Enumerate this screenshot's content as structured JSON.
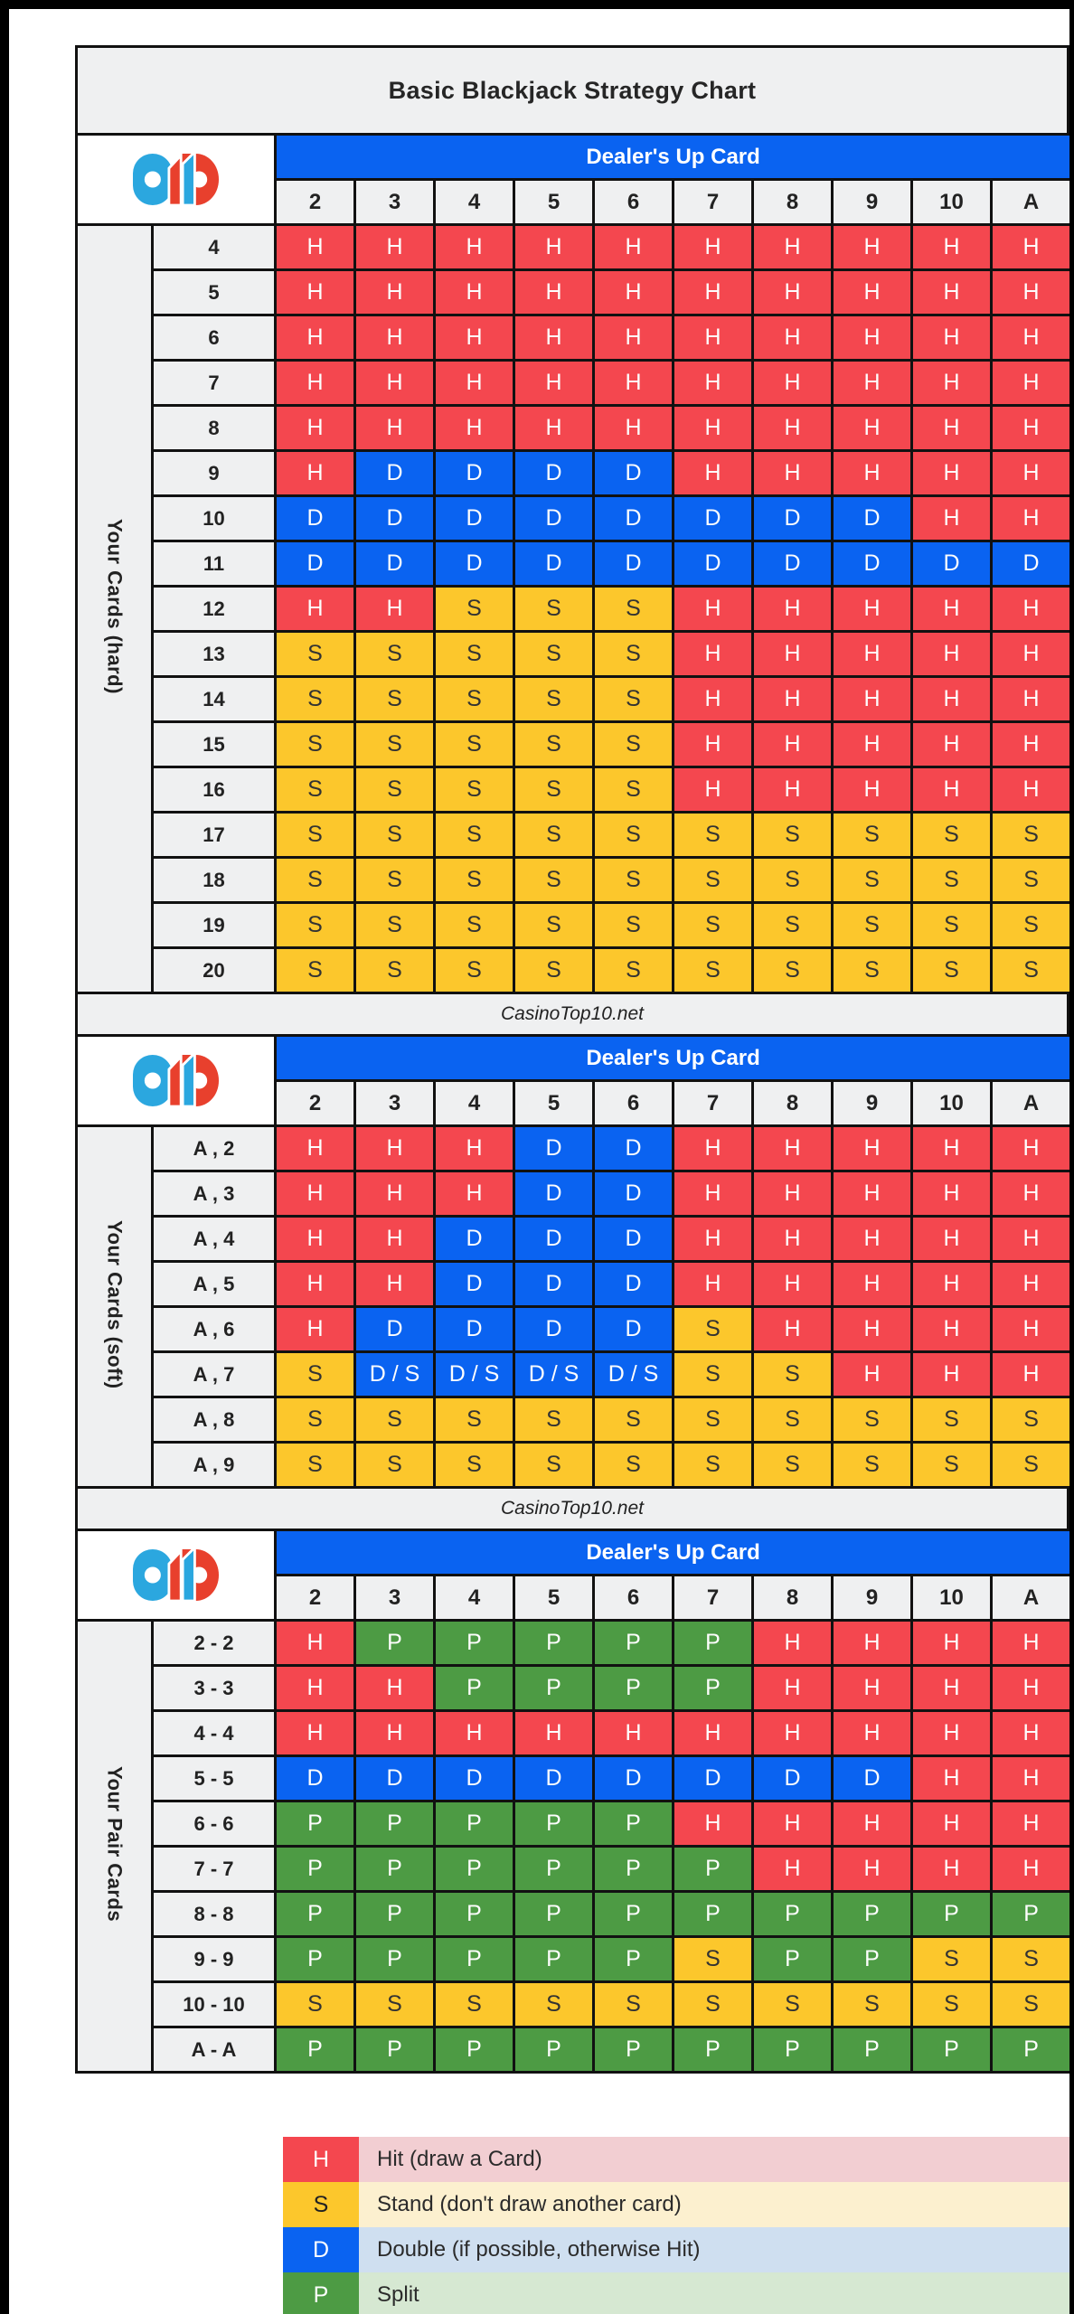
{
  "title": "Basic Blackjack Strategy Chart",
  "watermark": "CasinoTop10.net",
  "dealer": {
    "header": "Dealer's Up Card",
    "cards": [
      "2",
      "3",
      "4",
      "5",
      "6",
      "7",
      "8",
      "9",
      "10",
      "A"
    ]
  },
  "logo": {
    "name": "CasinoTop10 logo",
    "blue": "#2ba7df",
    "red": "#e8402d"
  },
  "colors": {
    "hit": "#f4474f",
    "stand": "#fcc72c",
    "double": "#0a63f1",
    "split": "#4d9b44",
    "border": "#111111",
    "band_bg": "#eff0f1",
    "legend_hit_bg": "#f2ced2",
    "legend_stand_bg": "#fcf0cf",
    "legend_double_bg": "#cfdff0",
    "legend_split_bg": "#d6e8d2"
  },
  "chart_data": [
    {
      "type": "table",
      "id": "hard",
      "title": "Your Cards (hard)",
      "columns": [
        "2",
        "3",
        "4",
        "5",
        "6",
        "7",
        "8",
        "9",
        "10",
        "A"
      ],
      "row_labels": [
        "4",
        "5",
        "6",
        "7",
        "8",
        "9",
        "10",
        "11",
        "12",
        "13",
        "14",
        "15",
        "16",
        "17",
        "18",
        "19",
        "20"
      ],
      "rows": [
        [
          "H",
          "H",
          "H",
          "H",
          "H",
          "H",
          "H",
          "H",
          "H",
          "H"
        ],
        [
          "H",
          "H",
          "H",
          "H",
          "H",
          "H",
          "H",
          "H",
          "H",
          "H"
        ],
        [
          "H",
          "H",
          "H",
          "H",
          "H",
          "H",
          "H",
          "H",
          "H",
          "H"
        ],
        [
          "H",
          "H",
          "H",
          "H",
          "H",
          "H",
          "H",
          "H",
          "H",
          "H"
        ],
        [
          "H",
          "H",
          "H",
          "H",
          "H",
          "H",
          "H",
          "H",
          "H",
          "H"
        ],
        [
          "H",
          "D",
          "D",
          "D",
          "D",
          "H",
          "H",
          "H",
          "H",
          "H"
        ],
        [
          "D",
          "D",
          "D",
          "D",
          "D",
          "D",
          "D",
          "D",
          "H",
          "H"
        ],
        [
          "D",
          "D",
          "D",
          "D",
          "D",
          "D",
          "D",
          "D",
          "D",
          "D"
        ],
        [
          "H",
          "H",
          "S",
          "S",
          "S",
          "H",
          "H",
          "H",
          "H",
          "H"
        ],
        [
          "S",
          "S",
          "S",
          "S",
          "S",
          "H",
          "H",
          "H",
          "H",
          "H"
        ],
        [
          "S",
          "S",
          "S",
          "S",
          "S",
          "H",
          "H",
          "H",
          "H",
          "H"
        ],
        [
          "S",
          "S",
          "S",
          "S",
          "S",
          "H",
          "H",
          "H",
          "H",
          "H"
        ],
        [
          "S",
          "S",
          "S",
          "S",
          "S",
          "H",
          "H",
          "H",
          "H",
          "H"
        ],
        [
          "S",
          "S",
          "S",
          "S",
          "S",
          "S",
          "S",
          "S",
          "S",
          "S"
        ],
        [
          "S",
          "S",
          "S",
          "S",
          "S",
          "S",
          "S",
          "S",
          "S",
          "S"
        ],
        [
          "S",
          "S",
          "S",
          "S",
          "S",
          "S",
          "S",
          "S",
          "S",
          "S"
        ],
        [
          "S",
          "S",
          "S",
          "S",
          "S",
          "S",
          "S",
          "S",
          "S",
          "S"
        ]
      ]
    },
    {
      "type": "table",
      "id": "soft",
      "title": "Your Cards (soft)",
      "columns": [
        "2",
        "3",
        "4",
        "5",
        "6",
        "7",
        "8",
        "9",
        "10",
        "A"
      ],
      "row_labels": [
        "A , 2",
        "A , 3",
        "A , 4",
        "A , 5",
        "A , 6",
        "A , 7",
        "A , 8",
        "A , 9"
      ],
      "rows": [
        [
          "H",
          "H",
          "H",
          "D",
          "D",
          "H",
          "H",
          "H",
          "H",
          "H"
        ],
        [
          "H",
          "H",
          "H",
          "D",
          "D",
          "H",
          "H",
          "H",
          "H",
          "H"
        ],
        [
          "H",
          "H",
          "D",
          "D",
          "D",
          "H",
          "H",
          "H",
          "H",
          "H"
        ],
        [
          "H",
          "H",
          "D",
          "D",
          "D",
          "H",
          "H",
          "H",
          "H",
          "H"
        ],
        [
          "H",
          "D",
          "D",
          "D",
          "D",
          "S",
          "H",
          "H",
          "H",
          "H"
        ],
        [
          "S",
          "D/S",
          "D/S",
          "D/S",
          "D/S",
          "S",
          "S",
          "H",
          "H",
          "H"
        ],
        [
          "S",
          "S",
          "S",
          "S",
          "S",
          "S",
          "S",
          "S",
          "S",
          "S"
        ],
        [
          "S",
          "S",
          "S",
          "S",
          "S",
          "S",
          "S",
          "S",
          "S",
          "S"
        ]
      ]
    },
    {
      "type": "table",
      "id": "pairs",
      "title": "Your Pair Cards",
      "columns": [
        "2",
        "3",
        "4",
        "5",
        "6",
        "7",
        "8",
        "9",
        "10",
        "A"
      ],
      "row_labels": [
        "2 - 2",
        "3 - 3",
        "4 - 4",
        "5 - 5",
        "6 - 6",
        "7 - 7",
        "8 - 8",
        "9 - 9",
        "10 - 10",
        "A - A"
      ],
      "rows": [
        [
          "H",
          "P",
          "P",
          "P",
          "P",
          "P",
          "H",
          "H",
          "H",
          "H"
        ],
        [
          "H",
          "H",
          "P",
          "P",
          "P",
          "P",
          "H",
          "H",
          "H",
          "H"
        ],
        [
          "H",
          "H",
          "H",
          "H",
          "H",
          "H",
          "H",
          "H",
          "H",
          "H"
        ],
        [
          "D",
          "D",
          "D",
          "D",
          "D",
          "D",
          "D",
          "D",
          "H",
          "H"
        ],
        [
          "P",
          "P",
          "P",
          "P",
          "P",
          "H",
          "H",
          "H",
          "H",
          "H"
        ],
        [
          "P",
          "P",
          "P",
          "P",
          "P",
          "P",
          "H",
          "H",
          "H",
          "H"
        ],
        [
          "P",
          "P",
          "P",
          "P",
          "P",
          "P",
          "P",
          "P",
          "P",
          "P"
        ],
        [
          "P",
          "P",
          "P",
          "P",
          "P",
          "S",
          "P",
          "P",
          "S",
          "S"
        ],
        [
          "S",
          "S",
          "S",
          "S",
          "S",
          "S",
          "S",
          "S",
          "S",
          "S"
        ],
        [
          "P",
          "P",
          "P",
          "P",
          "P",
          "P",
          "P",
          "P",
          "P",
          "P"
        ]
      ]
    }
  ],
  "legend": [
    {
      "key": "H",
      "action": "hit",
      "label": "Hit (draw a Card)"
    },
    {
      "key": "S",
      "action": "stand",
      "label": "Stand (don't draw another card)"
    },
    {
      "key": "D",
      "action": "double",
      "label": "Double (if possible, otherwise Hit)"
    },
    {
      "key": "P",
      "action": "split",
      "label": "Split"
    }
  ]
}
